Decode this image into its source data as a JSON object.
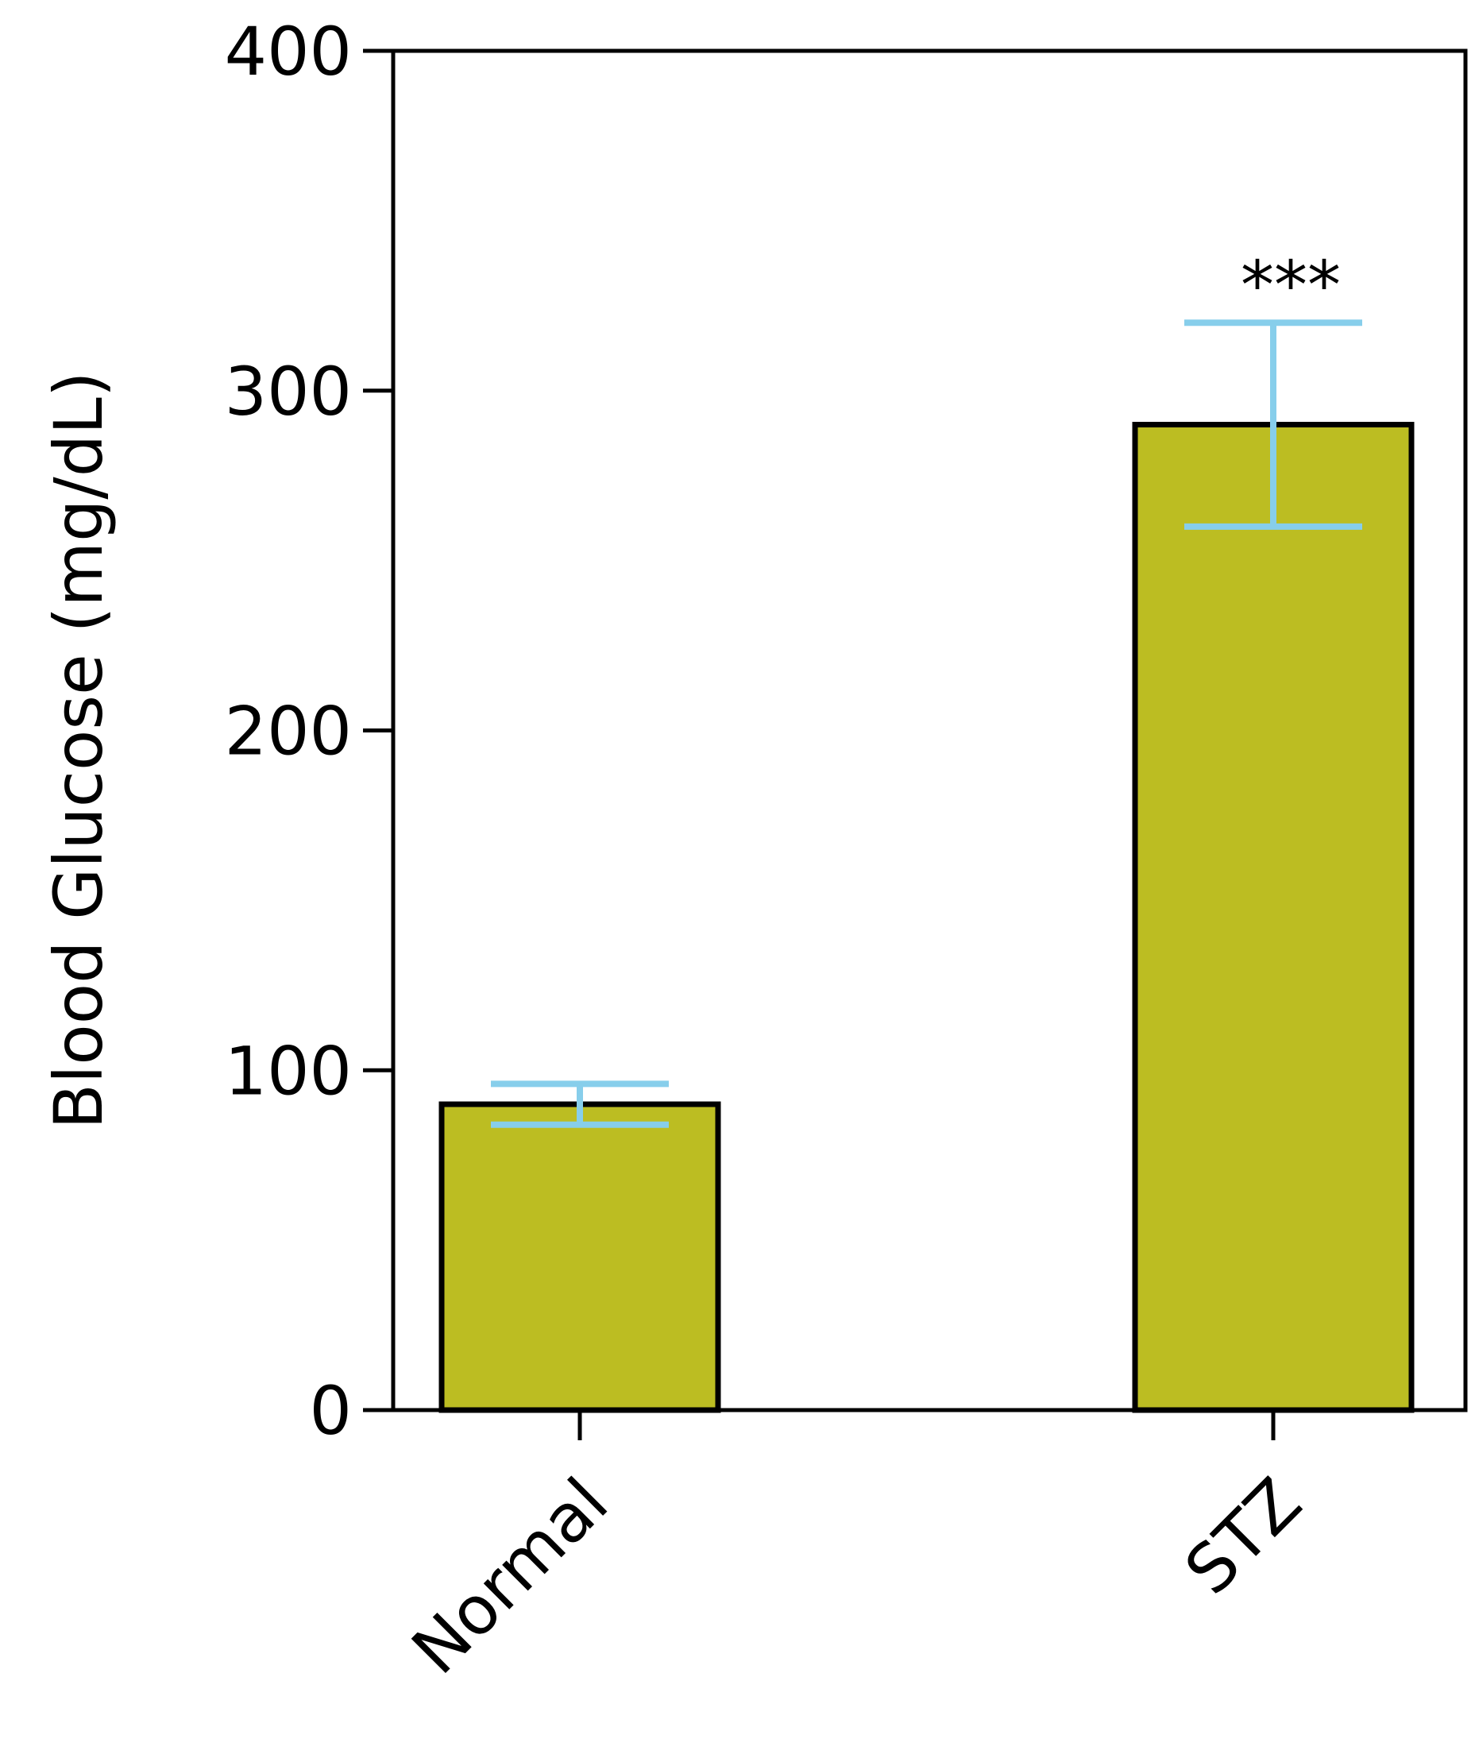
{
  "chart_data": {
    "type": "bar",
    "categories": [
      "Normal",
      "STZ"
    ],
    "values": [
      90,
      290
    ],
    "error": [
      6,
      30
    ],
    "annotations": [
      "",
      "***"
    ],
    "title": "",
    "xlabel": "",
    "ylabel": "Blood Glucose (mg/dL)",
    "ylim": [
      0,
      400
    ],
    "yticks": [
      "0",
      "100",
      "200",
      "300",
      "400"
    ],
    "colors": {
      "bar": "#bcbd22",
      "edge": "#000000",
      "error": "#87ceeb"
    },
    "grid": false
  }
}
